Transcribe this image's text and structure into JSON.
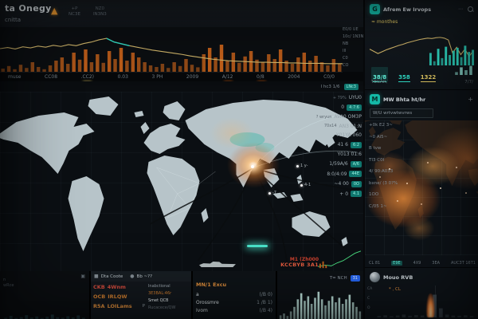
{
  "colors": {
    "accent_teal": "#2dd4bf",
    "accent_orange": "#c2560c",
    "accent_yellow": "#d8c05e",
    "alert_red": "#cf4a3c",
    "badge_blue": "#2563eb",
    "spark_green": "#4ade80",
    "land_light": "#b7c4c9",
    "land_dark": "#2b211a"
  },
  "header": {
    "title": "ta Onegy",
    "subtitle": "cnitta",
    "warn_icon": "pyramid-alert",
    "menu": [
      {
        "l1": "+P",
        "l2": "NC3E"
      },
      {
        "l1": "NZ0",
        "l2": "IN3N3"
      }
    ]
  },
  "top_chart": {
    "chart_data": {
      "type": "line+bar",
      "line": [
        50,
        53,
        49,
        55,
        52,
        57,
        54,
        59,
        56,
        61,
        58,
        64,
        68,
        74,
        78,
        68,
        63,
        58,
        54,
        50,
        46,
        43,
        40,
        37,
        34,
        30,
        27,
        24,
        21,
        19,
        17,
        16,
        15,
        14,
        13,
        13,
        12,
        12,
        11,
        11,
        10,
        10,
        10,
        9,
        9,
        9
      ],
      "teal_segment": "14,17",
      "bars": [
        10,
        18,
        8,
        22,
        12,
        30,
        15,
        8,
        20,
        35,
        45,
        25,
        60,
        38,
        70,
        30,
        55,
        28,
        65,
        40,
        75,
        35,
        60,
        45,
        30,
        20,
        15,
        25,
        12,
        30,
        18,
        40,
        22,
        14,
        55,
        75,
        45,
        85,
        35,
        60,
        28,
        48,
        65,
        38,
        30,
        55,
        40,
        70,
        35,
        25,
        45,
        60,
        35,
        50,
        30,
        20,
        40,
        25
      ],
      "x_ticks": [
        {
          "label": "muse",
          "color": "teal"
        },
        {
          "label": "CC08"
        },
        {
          "label": ".CC2)",
          "dash": "yellow"
        },
        {
          "label": "0.03"
        },
        {
          "label": "3 PH"
        },
        {
          "label": "2009"
        },
        {
          "label": "A/12",
          "dash": "orange"
        },
        {
          "label": "0/8",
          "dash": "orange"
        },
        {
          "label": "2004"
        },
        {
          "label": "C0/0"
        }
      ],
      "right_axis": [
        {
          "label": "E0/0 UE",
          "color": "yellow"
        },
        {
          "label": "10c/ 1N3N",
          "color": "dimyellow"
        },
        {
          "label": "NB"
        },
        {
          "label": "III"
        },
        {
          "label": "C0"
        },
        {
          "label": "CO"
        }
      ]
    }
  },
  "map_panel": {
    "toolbar_label": "I hc3 1/6",
    "toolbar_badge": "LNc3",
    "stats": [
      {
        "label": "UYU0",
        "sub": "+ 79%"
      },
      {
        "label": "0",
        "badge": "4:7:6"
      },
      {
        "label": "AVA0 OM3P",
        "sub": "? wryun"
      },
      {
        "label": "AN3 01:N",
        "sub": "70x14"
      },
      {
        "label": "Y01YA 060"
      },
      {
        "label": "41 6",
        "badge": "6:2"
      },
      {
        "label": "Y013 01:6"
      },
      {
        "label": "1/59A/6",
        "badge": "A/6"
      },
      {
        "label": "8:0/4:09",
        "badge": "44E"
      },
      {
        "label": "~4 00",
        "badge": "0O"
      },
      {
        "label": "+ 0",
        "badge": "4.1"
      }
    ],
    "markers": [
      {
        "x": 372,
        "y": 92,
        "label": "1 y-"
      },
      {
        "x": 377,
        "y": 116,
        "label": "4-1"
      },
      {
        "x": 337,
        "y": 126,
        "label": "-7"
      }
    ],
    "alert": {
      "line1": "M1 (Zh000",
      "line2": "KCCBYB 3A1"
    }
  },
  "bottom": {
    "panel1": {
      "side_lines": [
        "n",
        "wRce"
      ],
      "corner_icon": "expand-icon",
      "bars": [
        10,
        25,
        8,
        15,
        30,
        12,
        20,
        8,
        18,
        35,
        14,
        10,
        22,
        12,
        28,
        10
      ]
    },
    "panel2": {
      "tab1": "Dta Coote",
      "tab2": "Bb ~??",
      "rows": [
        {
          "code": "CKB",
          "name": "4Wnm",
          "color": "red"
        },
        {
          "code": "OCB",
          "name": "IRLQW",
          "color": "orange"
        },
        {
          "code": "R5A",
          "name": "LOILams",
          "color": "orange2",
          "tag": "P"
        }
      ],
      "col2": [
        {
          "text": "Inabctional",
          "color": "gray"
        },
        {
          "text": "3E3BAL:46r",
          "color": "orange"
        },
        {
          "text": "Smet QCB",
          "color": "white"
        },
        {
          "text": "Rucacece/QW",
          "color": "dgray"
        }
      ]
    },
    "panel3": {
      "header": "MN/1 Excu",
      "header_color": "orange2",
      "rows": [
        {
          "name": "a",
          "value": "(/B 0)"
        },
        {
          "name": "Orossmre",
          "value": "1 /B 1)"
        },
        {
          "name": "Ivom",
          "value": "(/B 4)"
        }
      ]
    },
    "panel4": {
      "label": "T= NCH",
      "badge": "31",
      "chart_data": {
        "type": "bar",
        "bars": [
          12,
          18,
          10,
          25,
          40,
          65,
          85,
          60,
          75,
          50,
          70,
          90,
          65,
          45,
          60,
          75,
          55,
          70,
          50,
          65,
          80,
          55,
          40,
          25
        ]
      }
    }
  },
  "g_panel": {
    "icon_letter": "G",
    "title": "Afrem Ew Irvops",
    "legend": "≈ monthes",
    "chart_data": {
      "type": "line+bar",
      "line": [
        40,
        34,
        28,
        33,
        38,
        42,
        46,
        50,
        53,
        57,
        60,
        63,
        66,
        68,
        70,
        69,
        71,
        72,
        70,
        65,
        30,
        45,
        25,
        40,
        20,
        35
      ],
      "bars": [
        60,
        20,
        80,
        35,
        90,
        50,
        70,
        85,
        40,
        95,
        65,
        75
      ]
    },
    "stats": [
      {
        "value": "38/8",
        "color": "tealhl"
      },
      {
        "value": "358",
        "color": "teal"
      },
      {
        "value": "1322",
        "color": "yellow"
      }
    ],
    "mini_bars": [
      30,
      80,
      50,
      95
    ],
    "footer_left": "TEGAR,",
    "footer_right": "7/7/"
  },
  "m_panel": {
    "icon_letter": "M",
    "title": "MW Bhta ht/hr",
    "plus_icon": "+",
    "search_value": "W/U wrtvwtwvrws",
    "stats": [
      {
        "label": "+0k E2 3~"
      },
      {
        "label": "~0 Ai5~"
      },
      {
        "label": "B tvw"
      },
      {
        "label": "TI3 C0I"
      },
      {
        "label": "4/ 90:A033"
      },
      {
        "label": "bxne/ (3 0?%"
      },
      {
        "label": "1OO",
        "color": "teal"
      },
      {
        "label": "C/05 1~"
      }
    ],
    "x_ticks": [
      {
        "label": "CL 81"
      },
      {
        "label": "E9E",
        "active": true
      },
      {
        "label": "4X9"
      },
      {
        "label": "3EA"
      },
      {
        "label": "AUC3T 16T1"
      }
    ]
  },
  "avatar_panel": {
    "title": "Mouo RVB",
    "sub_label": "* , CL",
    "axis_labels": [
      "CA",
      "C",
      "O"
    ],
    "chart_data": {
      "type": "bar",
      "bars": [
        6,
        9,
        5,
        8,
        12,
        7,
        10,
        8,
        14,
        95,
        38,
        12,
        8,
        7,
        9,
        6
      ]
    }
  }
}
